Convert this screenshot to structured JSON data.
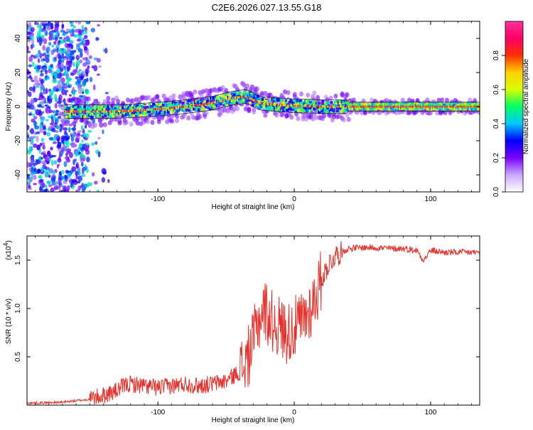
{
  "figure_title": "C2E6.2026.027.13.55.G18",
  "chart_data": [
    {
      "type": "heatmap",
      "title": "",
      "xlabel": "Height of straight line (km)",
      "ylabel": "Frequency (Hz)",
      "xlim": [
        -196,
        136
      ],
      "ylim": [
        -50,
        50
      ],
      "xticks": [
        -100,
        0,
        100
      ],
      "xtick_labels": [
        "-100",
        "0",
        "100"
      ],
      "yticks": [
        -40,
        -20,
        0,
        20,
        40
      ],
      "ytick_labels": [
        "-40",
        "-20",
        "0",
        "20",
        "40"
      ],
      "ridge": {
        "description_x": [
          -165,
          -140,
          -120,
          -100,
          -80,
          -60,
          -45,
          -35,
          -25,
          -10,
          0,
          20,
          40,
          60,
          80,
          100,
          120,
          136
        ],
        "description_center_hz": [
          -3,
          -3,
          -2.5,
          -1.5,
          0,
          2,
          5,
          6,
          2,
          1,
          0.5,
          0,
          0,
          0,
          0,
          0,
          0,
          0
        ]
      },
      "colorbar": {
        "label": "Normalized spectral amplitude",
        "ticks": [
          0.0,
          0.2,
          0.4,
          0.6,
          0.8
        ],
        "tick_labels": [
          "0.0",
          "0.2",
          "0.4",
          "0.6",
          "0.8"
        ],
        "range": [
          0,
          1
        ],
        "colors": [
          "#ffffff",
          "#c9a8ff",
          "#7a00ff",
          "#0000ff",
          "#00c8ff",
          "#00ff66",
          "#d8ff00",
          "#ffd000",
          "#ff3000",
          "#ff0066",
          "#ff3399"
        ]
      }
    },
    {
      "type": "line",
      "title": "",
      "xlabel": "Height of straight line (km)",
      "ylabel": "SNR (10 * v/v)",
      "y_multiplier_label": "(x10",
      "y_multiplier_exp": "4",
      "y_multiplier_close": ")",
      "xlim": [
        -196,
        136
      ],
      "ylim": [
        0,
        1.75
      ],
      "xticks": [
        -100,
        0,
        100
      ],
      "xtick_labels": [
        "-100",
        "0",
        "100"
      ],
      "yticks": [
        0.5,
        1.0,
        1.5
      ],
      "ytick_labels": [
        "0.5",
        "1.0",
        "1.5"
      ],
      "series": [
        {
          "name": "SNR",
          "color": "#e8302a",
          "x": [
            -196,
            -170,
            -150,
            -140,
            -130,
            -125,
            -120,
            -110,
            -100,
            -90,
            -80,
            -70,
            -60,
            -50,
            -45,
            -40,
            -35,
            -30,
            -28,
            -25,
            -22,
            -20,
            -18,
            -15,
            -10,
            -5,
            0,
            5,
            10,
            15,
            20,
            25,
            30,
            40,
            50,
            60,
            70,
            80,
            90,
            95,
            100,
            110,
            120,
            136
          ],
          "y": [
            0.02,
            0.03,
            0.06,
            0.1,
            0.15,
            0.2,
            0.22,
            0.2,
            0.18,
            0.2,
            0.22,
            0.2,
            0.22,
            0.25,
            0.3,
            0.35,
            0.45,
            0.65,
            0.8,
            0.9,
            1.0,
            0.95,
            0.9,
            0.85,
            0.8,
            0.75,
            0.8,
            0.85,
            0.95,
            1.1,
            1.3,
            1.45,
            1.55,
            1.62,
            1.63,
            1.63,
            1.62,
            1.62,
            1.6,
            1.5,
            1.6,
            1.58,
            1.58,
            1.58
          ]
        }
      ]
    }
  ]
}
